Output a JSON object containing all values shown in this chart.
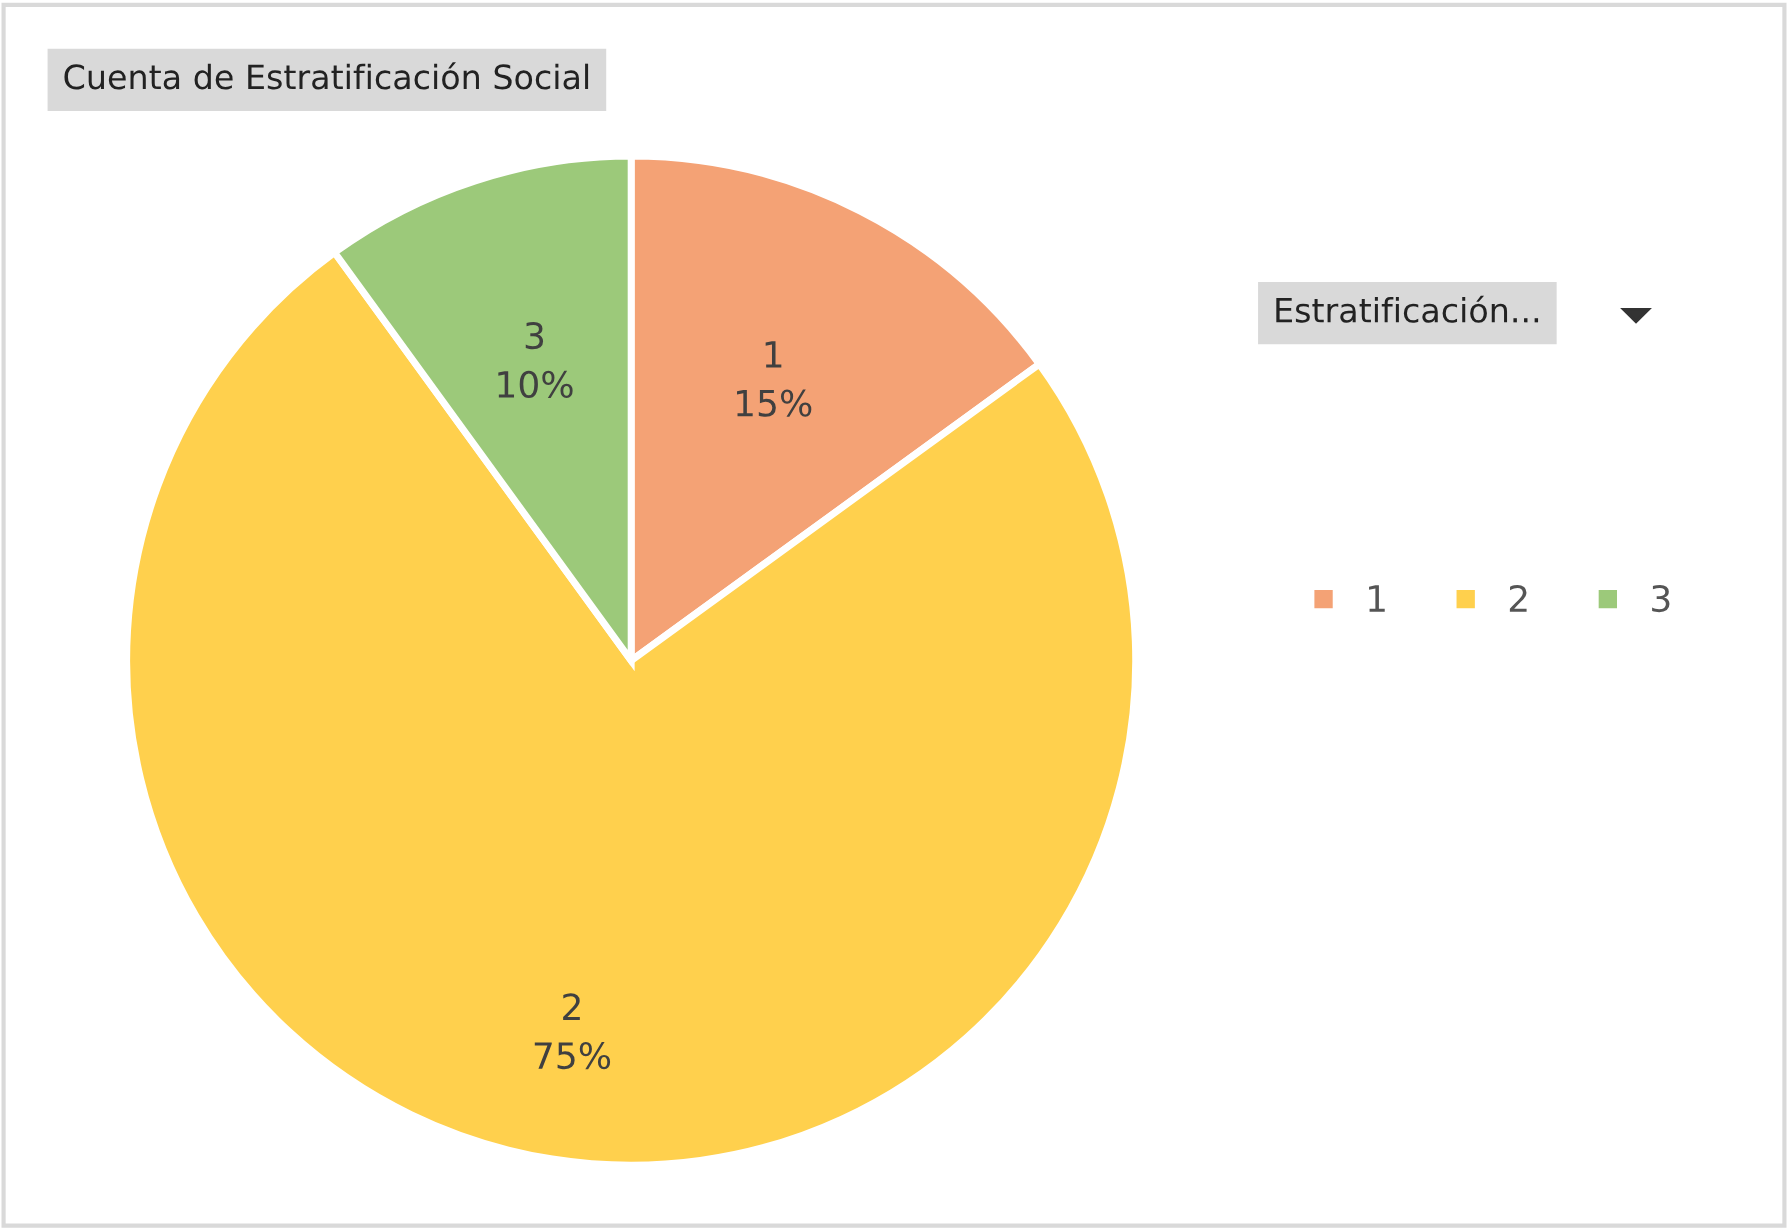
{
  "chart_data": {
    "type": "pie",
    "title": "Cuenta de Estratificación Social",
    "legend_title": "Estratificación...",
    "categories": [
      "1",
      "2",
      "3"
    ],
    "values": [
      15,
      75,
      10
    ],
    "value_labels": [
      "15%",
      "75%",
      "10%"
    ],
    "colors": [
      "#f4a275",
      "#ffd04d",
      "#9cc97a"
    ],
    "legend": "right"
  }
}
